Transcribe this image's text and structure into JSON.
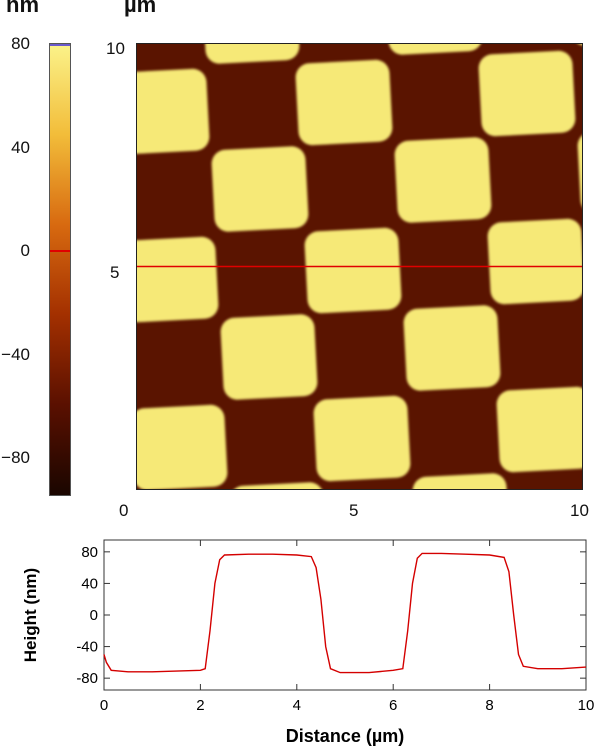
{
  "colorbar": {
    "unit": "nm",
    "ticks": [
      "80",
      "40",
      "0",
      "−40",
      "−80"
    ],
    "tick_values": [
      80,
      40,
      0,
      -40,
      -80
    ],
    "range": [
      -95,
      80
    ],
    "colors": [
      "#1a0600",
      "#5a1000",
      "#a33000",
      "#d86a10",
      "#f2bd3a",
      "#fbf38a"
    ]
  },
  "image": {
    "unit": "µm",
    "y_ticks": [
      "10",
      "5"
    ],
    "x_ticks": [
      "0",
      "5",
      "10"
    ],
    "range": [
      0,
      10
    ],
    "line_profile_y": 5,
    "line_color": "#e00000",
    "dark_color": "#5a1400",
    "light_color": "#f6e977"
  },
  "chart_data": {
    "type": "line",
    "title": "",
    "xlabel": "Distance (µm)",
    "ylabel": "Height (nm)",
    "xlim": [
      0,
      10
    ],
    "ylim": [
      -95,
      95
    ],
    "xticks": [
      "0",
      "2",
      "4",
      "6",
      "8",
      "10"
    ],
    "yticks": [
      "80",
      "40",
      "0",
      "-40",
      "-80"
    ],
    "grid": false,
    "series": [
      {
        "color": "#d40000",
        "x": [
          0,
          0.05,
          0.15,
          0.5,
          1.0,
          1.5,
          2.0,
          2.1,
          2.2,
          2.3,
          2.4,
          2.5,
          3.0,
          3.5,
          4.0,
          4.3,
          4.4,
          4.5,
          4.6,
          4.7,
          4.9,
          5.5,
          6.0,
          6.2,
          6.3,
          6.4,
          6.5,
          6.6,
          7.0,
          7.5,
          8.0,
          8.3,
          8.4,
          8.5,
          8.6,
          8.7,
          9.0,
          9.5,
          10.0
        ],
        "y": [
          -50,
          -60,
          -70,
          -72,
          -72,
          -71,
          -70,
          -68,
          -20,
          40,
          70,
          76,
          77,
          77,
          76,
          74,
          60,
          20,
          -40,
          -68,
          -73,
          -73,
          -70,
          -68,
          -20,
          40,
          72,
          78,
          78,
          77,
          76,
          73,
          55,
          0,
          -50,
          -65,
          -68,
          -68,
          -66
        ]
      }
    ]
  }
}
